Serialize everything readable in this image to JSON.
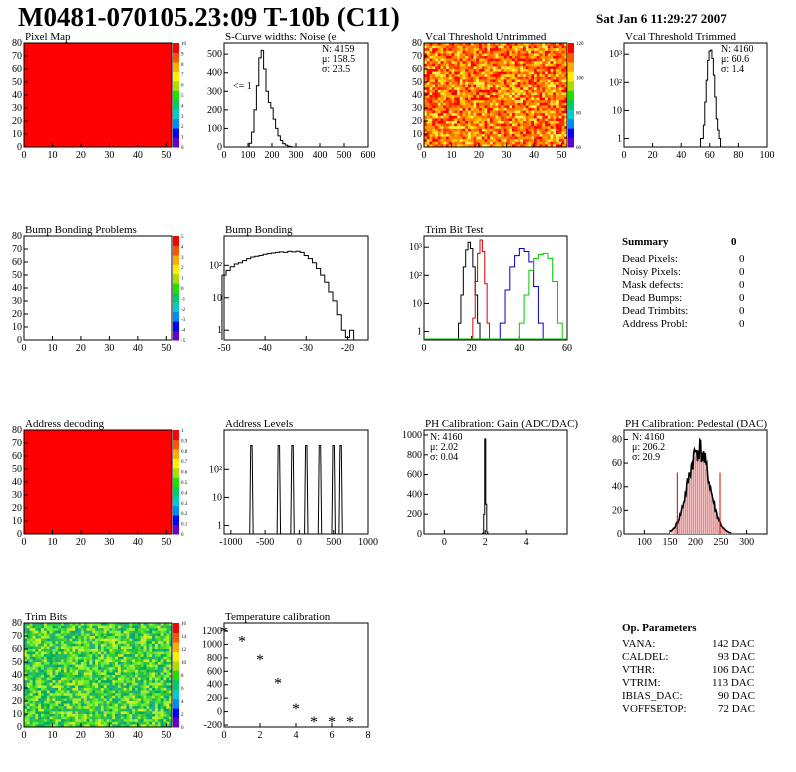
{
  "header": {
    "title": "M0481-070105.23:09 T-10b (C11)",
    "date": "Sat Jan  6 11:29:27 2007"
  },
  "summary": {
    "title": "Summary",
    "total": "0",
    "rows": [
      {
        "label": "Dead Pixels:",
        "value": "0"
      },
      {
        "label": "Noisy Pixels:",
        "value": "0"
      },
      {
        "label": "Mask defects:",
        "value": "0"
      },
      {
        "label": "Dead Bumps:",
        "value": "0"
      },
      {
        "label": "Dead Trimbits:",
        "value": "0"
      },
      {
        "label": "Address Probl:",
        "value": "0"
      }
    ]
  },
  "op_parameters": {
    "title": "Op. Parameters",
    "rows": [
      {
        "label": "VANA:",
        "value": "142 DAC"
      },
      {
        "label": "CALDEL:",
        "value": "93 DAC"
      },
      {
        "label": "VTHR:",
        "value": "106 DAC"
      },
      {
        "label": "VTRIM:",
        "value": "113 DAC"
      },
      {
        "label": "IBIAS_DAC:",
        "value": "90 DAC"
      },
      {
        "label": "VOFFSETOP:",
        "value": "72 DAC"
      }
    ]
  },
  "chart_data": [
    {
      "id": "pixel-map",
      "type": "heatmap",
      "title": "Pixel Map",
      "fill": "uniform-red",
      "xticks": [
        "0",
        "10",
        "20",
        "30",
        "40",
        "50"
      ],
      "yticks": [
        "0",
        "10",
        "20",
        "30",
        "40",
        "50",
        "60",
        "70",
        "80"
      ],
      "palette": [
        "0",
        "1",
        "2",
        "3",
        "4",
        "5",
        "6",
        "7",
        "8",
        "9",
        "10"
      ]
    },
    {
      "id": "scurve-widths",
      "type": "histogram",
      "title": "S-Curve widths: Noise (e",
      "stats": [
        "N: 4159",
        "μ: 158.5",
        "σ: 23.5"
      ],
      "annotation": "<= 1",
      "xticks": [
        "0",
        "100",
        "200",
        "300",
        "400",
        "500",
        "600"
      ],
      "yticks": [
        "0",
        "100",
        "200",
        "300",
        "400",
        "500"
      ],
      "xlim": [
        0,
        600
      ],
      "ylim": [
        0,
        560
      ],
      "x": [
        110,
        120,
        130,
        140,
        150,
        160,
        170,
        180,
        190,
        200,
        210,
        220,
        230,
        240,
        250,
        260,
        270,
        280
      ],
      "y": [
        20,
        80,
        200,
        330,
        480,
        520,
        420,
        300,
        240,
        210,
        150,
        100,
        60,
        35,
        18,
        10,
        5,
        2
      ]
    },
    {
      "id": "vcal-untrimmed",
      "type": "heatmap",
      "title": "Vcal Threshold Untrimmed",
      "fill": "noisy-hot",
      "xticks": [
        "0",
        "10",
        "20",
        "30",
        "40",
        "50"
      ],
      "yticks": [
        "0",
        "10",
        "20",
        "30",
        "40",
        "50",
        "60",
        "70",
        "80"
      ],
      "palette": [
        "60",
        "80",
        "100",
        "120"
      ]
    },
    {
      "id": "vcal-trimmed",
      "type": "histogram",
      "title": "Vcal Threshold Trimmed",
      "log": true,
      "stats": [
        "N: 4160",
        "μ: 60.6",
        "σ:  1.4"
      ],
      "xticks": [
        "0",
        "20",
        "40",
        "60",
        "80",
        "100"
      ],
      "xlim": [
        0,
        100
      ],
      "x": [
        54,
        55,
        56,
        57,
        58,
        59,
        60,
        61,
        62,
        63,
        64,
        65,
        66,
        67
      ],
      "y": [
        1,
        1,
        3,
        20,
        120,
        600,
        1300,
        1400,
        700,
        180,
        30,
        5,
        2,
        1
      ]
    },
    {
      "id": "bump-bonding-problems",
      "type": "heatmap",
      "title": "Bump Bonding Problems",
      "fill": "empty",
      "xticks": [
        "0",
        "10",
        "20",
        "30",
        "40",
        "50"
      ],
      "yticks": [
        "0",
        "10",
        "20",
        "30",
        "40",
        "50",
        "60",
        "70",
        "80"
      ],
      "palette": [
        "-5",
        "-4",
        "-3",
        "-2",
        "-1",
        "0",
        "1",
        "2",
        "3",
        "4",
        "5"
      ]
    },
    {
      "id": "bump-bonding",
      "type": "histogram",
      "title": "Bump Bonding",
      "log": true,
      "xticks": [
        "-50",
        "-40",
        "-30",
        "-20"
      ],
      "xlim": [
        -50,
        -15
      ],
      "x": [
        -50,
        -49,
        -48,
        -47,
        -46,
        -45,
        -44,
        -43,
        -42,
        -41,
        -40,
        -39,
        -38,
        -37,
        -36,
        -35,
        -34,
        -33,
        -32,
        -31,
        -30,
        -29,
        -28,
        -27,
        -26,
        -25,
        -24,
        -23,
        -22,
        -21,
        -20,
        -19
      ],
      "y": [
        50,
        70,
        90,
        110,
        120,
        140,
        160,
        180,
        190,
        200,
        220,
        230,
        240,
        250,
        260,
        250,
        270,
        260,
        270,
        250,
        200,
        160,
        120,
        80,
        50,
        30,
        15,
        8,
        3,
        1,
        0.6,
        1
      ]
    },
    {
      "id": "trim-bit-test",
      "type": "histogram",
      "title": "Trim Bit Test",
      "log": true,
      "xticks": [
        "0",
        "20",
        "40",
        "60"
      ],
      "xlim": [
        0,
        60
      ],
      "series": [
        {
          "color": "#000000",
          "x": [
            15,
            16,
            17,
            18,
            19,
            20,
            21,
            22,
            23
          ],
          "y": [
            2,
            20,
            200,
            800,
            1500,
            900,
            200,
            20,
            2
          ]
        },
        {
          "color": "#dd0000",
          "x": [
            21,
            22,
            23,
            24,
            25,
            26,
            27
          ],
          "y": [
            3,
            60,
            600,
            1800,
            700,
            50,
            2
          ]
        },
        {
          "color": "#0000cc",
          "x": [
            33,
            35,
            37,
            39,
            41,
            43,
            45,
            47,
            49
          ],
          "y": [
            2,
            30,
            200,
            500,
            900,
            700,
            300,
            40,
            2
          ]
        },
        {
          "color": "#00cc00",
          "x": [
            41,
            43,
            45,
            47,
            49,
            51,
            53,
            55,
            57
          ],
          "y": [
            2,
            20,
            150,
            400,
            550,
            600,
            400,
            60,
            2
          ]
        }
      ]
    },
    {
      "id": "address-decoding",
      "type": "heatmap",
      "title": "Address decoding",
      "fill": "uniform-red",
      "xticks": [
        "0",
        "10",
        "20",
        "30",
        "40",
        "50"
      ],
      "yticks": [
        "0",
        "10",
        "20",
        "30",
        "40",
        "50",
        "60",
        "70",
        "80"
      ],
      "palette": [
        "0",
        "0.1",
        "0.2",
        "0.3",
        "0.4",
        "0.5",
        "0.6",
        "0.7",
        "0.8",
        "0.9",
        "1"
      ]
    },
    {
      "id": "address-levels",
      "type": "histogram",
      "title": "Address Levels",
      "log": true,
      "xticks": [
        "-1000",
        "-500",
        "0",
        "500",
        "1000"
      ],
      "xlim": [
        -1100,
        1000
      ],
      "peaks": [
        -700,
        -300,
        -100,
        100,
        300,
        500,
        600
      ]
    },
    {
      "id": "ph-gain",
      "type": "histogram",
      "title": "PH Calibration: Gain (ADC/DAC)",
      "stats": [
        "N: 4160",
        "μ: 2.02",
        "σ: 0.04"
      ],
      "xticks": [
        "0",
        "2",
        "4"
      ],
      "yticks": [
        "0",
        "200",
        "400",
        "600",
        "800",
        "1000"
      ],
      "xlim": [
        -1,
        6
      ],
      "ylim": [
        0,
        1050
      ],
      "x": [
        1.9,
        1.95,
        2.0,
        2.05,
        2.1
      ],
      "y": [
        10,
        200,
        960,
        300,
        20
      ]
    },
    {
      "id": "ph-pedestal",
      "type": "histogram",
      "title": "PH Calibration: Pedestal (DAC)",
      "stats": [
        "N: 4160",
        "μ: 206.2",
        "σ: 20.9"
      ],
      "xticks": [
        "100",
        "150",
        "200",
        "250",
        "300"
      ],
      "yticks": [
        "0",
        "20",
        "40",
        "60",
        "80"
      ],
      "xlim": [
        60,
        340
      ],
      "ylim": [
        0,
        88
      ],
      "mean": 206.2,
      "sigma": 20.9
    },
    {
      "id": "trim-bits",
      "type": "heatmap",
      "title": "Trim Bits",
      "fill": "noisy-green",
      "xticks": [
        "0",
        "10",
        "20",
        "30",
        "40",
        "50"
      ],
      "yticks": [
        "0",
        "10",
        "20",
        "30",
        "40",
        "50",
        "60",
        "70",
        "80"
      ],
      "palette": [
        "0",
        "2",
        "4",
        "6",
        "8",
        "10",
        "12",
        "14",
        "16"
      ]
    },
    {
      "id": "temperature-calibration",
      "type": "scatter",
      "title": "Temperature calibration",
      "xticks": [
        "0",
        "2",
        "4",
        "6",
        "8"
      ],
      "yticks": [
        "-200",
        "0",
        "200",
        "400",
        "600",
        "800",
        "1000",
        "1200"
      ],
      "xlim": [
        0,
        8
      ],
      "ylim": [
        -230,
        1320
      ],
      "x": [
        0,
        1,
        2,
        3,
        4,
        5,
        6,
        7
      ],
      "y": [
        1200,
        1060,
        780,
        430,
        50,
        -140,
        -140,
        -140
      ]
    }
  ]
}
